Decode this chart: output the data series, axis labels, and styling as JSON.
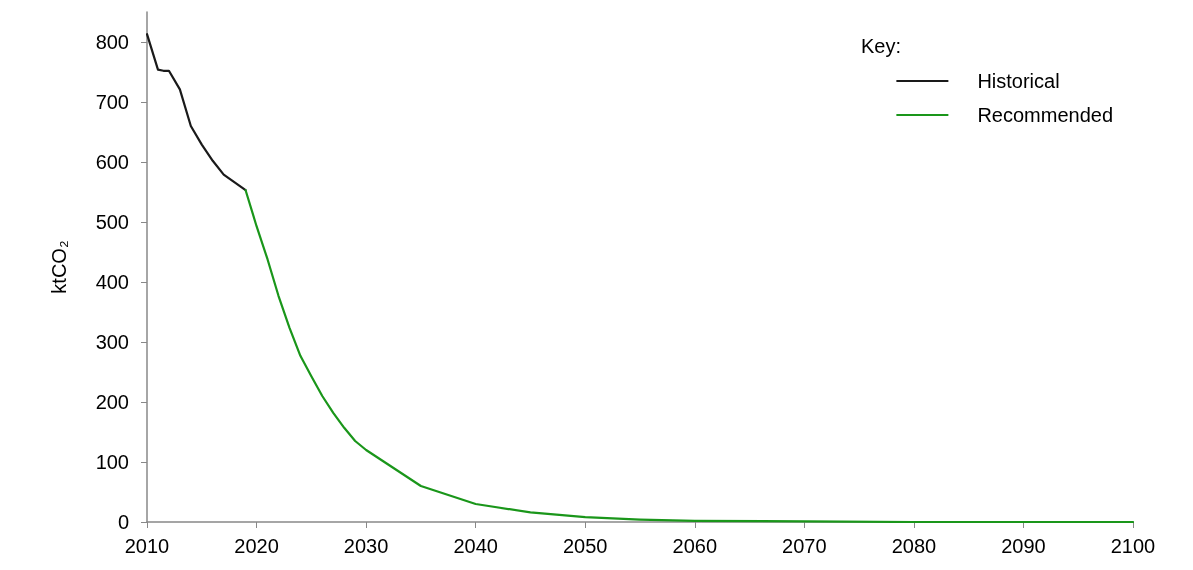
{
  "chart_data": {
    "type": "line",
    "ylabel": "ktCO₂",
    "legend_title": "Key:",
    "legend": "top right",
    "grid": false,
    "marker": "none",
    "line_style": "solid",
    "xlim": [
      2010,
      2100
    ],
    "xticks": [
      2010,
      2020,
      2030,
      2040,
      2050,
      2060,
      2070,
      2080,
      2090,
      2100
    ],
    "ylim": [
      0,
      850
    ],
    "yticks": [
      0,
      100,
      200,
      300,
      400,
      500,
      600,
      700,
      800
    ],
    "series": [
      {
        "name": "Historical",
        "color": "#1a1a1a",
        "x": [
          2010,
          2011,
          2011.5,
          2012,
          2013,
          2014,
          2015,
          2016,
          2017,
          2018,
          2019
        ],
        "values": [
          813,
          754,
          752,
          752,
          721,
          660,
          629,
          602,
          579,
          566,
          553
        ]
      },
      {
        "name": "Recommended",
        "color": "#1a961a",
        "x": [
          2019,
          2020,
          2021,
          2022,
          2023,
          2024,
          2025,
          2026,
          2027,
          2028,
          2029,
          2030,
          2035,
          2040,
          2045,
          2050,
          2055,
          2060,
          2070,
          2080,
          2090,
          2100
        ],
        "values": [
          553,
          493,
          438,
          377,
          324,
          277,
          243,
          210,
          182,
          157,
          135,
          120,
          60,
          30,
          16,
          8,
          4,
          2,
          1,
          0,
          0,
          0
        ]
      }
    ]
  }
}
